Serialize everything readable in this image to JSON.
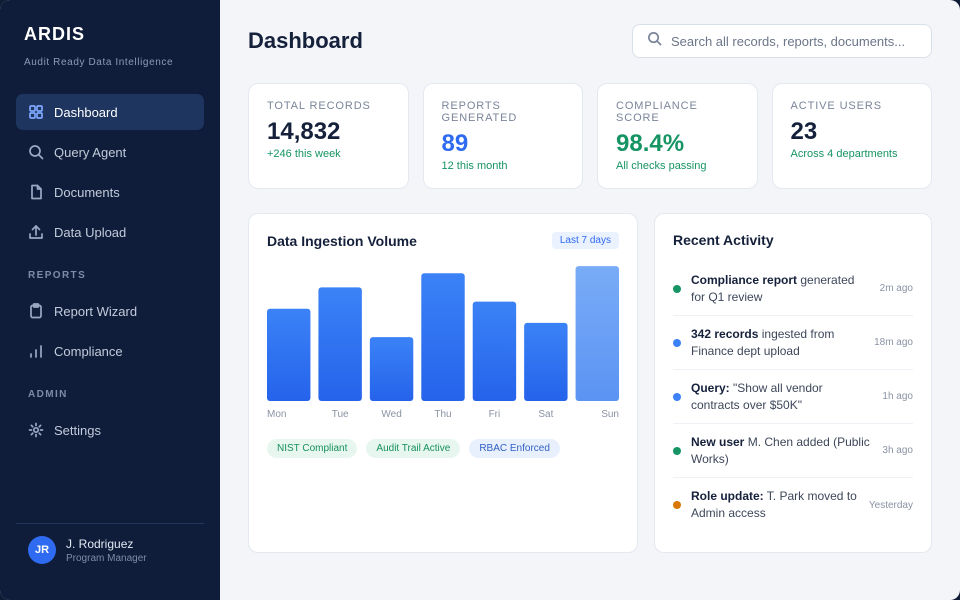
{
  "brand": {
    "name": "ARDIS",
    "tagline": "Audit Ready Data Intelligence"
  },
  "nav": {
    "main": [
      {
        "label": "Dashboard",
        "icon": "grid-icon",
        "active": true
      },
      {
        "label": "Query Agent",
        "icon": "search-icon"
      },
      {
        "label": "Documents",
        "icon": "document-icon"
      },
      {
        "label": "Data Upload",
        "icon": "upload-icon"
      }
    ],
    "reports_label": "REPORTS",
    "reports": [
      {
        "label": "Report Wizard",
        "icon": "clipboard-icon"
      },
      {
        "label": "Compliance",
        "icon": "bar-chart-icon"
      }
    ],
    "admin_label": "ADMIN",
    "admin": [
      {
        "label": "Settings",
        "icon": "gear-icon"
      }
    ]
  },
  "user": {
    "initials": "JR",
    "name": "J. Rodriguez",
    "role": "Program Manager"
  },
  "header": {
    "title": "Dashboard",
    "search_placeholder": "Search all records, reports, documents..."
  },
  "stats": [
    {
      "label": "TOTAL RECORDS",
      "value": "14,832",
      "sub": "+246 this week",
      "value_color": "#15203b"
    },
    {
      "label": "REPORTS GENERATED",
      "value": "89",
      "sub": "12 this month",
      "value_color": "#2f6bf0"
    },
    {
      "label": "COMPLIANCE SCORE",
      "value": "98.4%",
      "sub": "All checks passing",
      "value_color": "#169463"
    },
    {
      "label": "ACTIVE USERS",
      "value": "23",
      "sub": "Across 4 departments",
      "value_color": "#15203b"
    }
  ],
  "ingestion": {
    "title": "Data Ingestion Volume",
    "range": "Last 7 days",
    "badges": [
      {
        "label": "NIST Compliant",
        "tone": "green"
      },
      {
        "label": "Audit Trail Active",
        "tone": "green"
      },
      {
        "label": "RBAC Enforced",
        "tone": "blue"
      }
    ]
  },
  "chart_data": {
    "type": "bar",
    "title": "Data Ingestion Volume",
    "categories": [
      "Mon",
      "Tue",
      "Wed",
      "Thu",
      "Fri",
      "Sat",
      "Sun"
    ],
    "values": [
      65,
      80,
      45,
      90,
      70,
      55,
      95
    ],
    "ylim": [
      0,
      100
    ],
    "grid": false,
    "colors": {
      "bar": "#2f6bf0",
      "highlight": "#6ea3f7"
    }
  },
  "activity": {
    "title": "Recent Activity",
    "items": [
      {
        "bold": "Compliance report",
        "text": " generated for Q1 review",
        "time": "2m ago",
        "color": "#169463"
      },
      {
        "bold": "342 records",
        "text": " ingested from Finance dept upload",
        "time": "18m ago",
        "color": "#3b82f6"
      },
      {
        "bold": "Query:",
        "text": " \"Show all vendor contracts over $50K\"",
        "time": "1h ago",
        "color": "#3b82f6"
      },
      {
        "bold": "New user",
        "text": " M. Chen added (Public Works)",
        "time": "3h ago",
        "color": "#169463"
      },
      {
        "bold": "Role update:",
        "text": " T. Park moved to Admin access",
        "time": "Yesterday",
        "color": "#d97706"
      }
    ]
  }
}
